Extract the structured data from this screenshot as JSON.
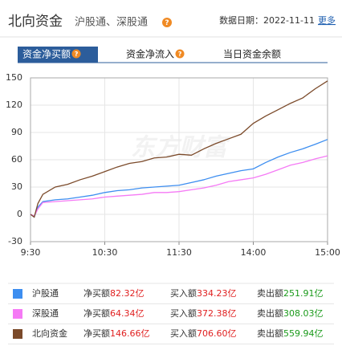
{
  "header": {
    "title": "北向资金",
    "subtitle": "沪股通、深股通",
    "help_icon": "?",
    "date": "数据日期：2022-11-11",
    "more": "更多"
  },
  "tabs": [
    {
      "label": "资金净买额",
      "help": true
    },
    {
      "label": "资金净流入",
      "help": true
    },
    {
      "label": "当日资金余额",
      "help": false
    }
  ],
  "chart_data": {
    "type": "line",
    "watermark": "东方财富",
    "x": [
      0,
      3,
      6,
      10,
      20,
      30,
      40,
      50,
      60,
      70,
      80,
      90,
      100,
      110,
      120,
      130,
      140,
      150,
      160,
      170,
      180,
      190,
      200,
      210,
      220,
      230,
      240
    ],
    "xlim": [
      0,
      240
    ],
    "xticks": [
      {
        "value": 0,
        "label": "9:30"
      },
      {
        "value": 60,
        "label": "10:30"
      },
      {
        "value": 120,
        "label": "11:30"
      },
      {
        "value": 180,
        "label": "14:00"
      },
      {
        "value": 240,
        "label": "15:00"
      }
    ],
    "ylim": [
      -30,
      150
    ],
    "yticks": [
      -30,
      0,
      30,
      60,
      90,
      120,
      150
    ],
    "grid": true,
    "series": [
      {
        "name": "沪股通",
        "color": "#3d8ef0",
        "values": [
          0,
          -3,
          8,
          14,
          16,
          17,
          19,
          21,
          24,
          26,
          27,
          29,
          30,
          31,
          32,
          35,
          38,
          42,
          45,
          48,
          50,
          57,
          63,
          68,
          72,
          77,
          82.32
        ]
      },
      {
        "name": "深股通",
        "color": "#f57af5",
        "values": [
          0,
          -2,
          6,
          13,
          14,
          15,
          16,
          17,
          19,
          20,
          21,
          22,
          24,
          24,
          25,
          27,
          29,
          32,
          36,
          38,
          40,
          44,
          49,
          54,
          57,
          61,
          64.34
        ]
      },
      {
        "name": "北向资金",
        "color": "#7b4a2a",
        "values": [
          0,
          -3,
          12,
          22,
          30,
          33,
          38,
          42,
          47,
          52,
          56,
          58,
          62,
          63,
          66,
          65,
          72,
          78,
          83,
          88,
          100,
          108,
          115,
          122,
          128,
          138,
          146.66
        ]
      }
    ]
  },
  "table": {
    "rows": [
      {
        "net_label": "净买额",
        "net": "82.32亿",
        "buy_label": "买入额",
        "buy": "334.23亿",
        "sell_label": "卖出额",
        "sell": "251.91亿"
      },
      {
        "net_label": "净买额",
        "net": "64.34亿",
        "buy_label": "买入额",
        "buy": "372.38亿",
        "sell_label": "卖出额",
        "sell": "308.03亿"
      },
      {
        "net_label": "净买额",
        "net": "146.66亿",
        "buy_label": "买入额",
        "buy": "706.60亿",
        "sell_label": "卖出额",
        "sell": "559.94亿"
      }
    ]
  }
}
